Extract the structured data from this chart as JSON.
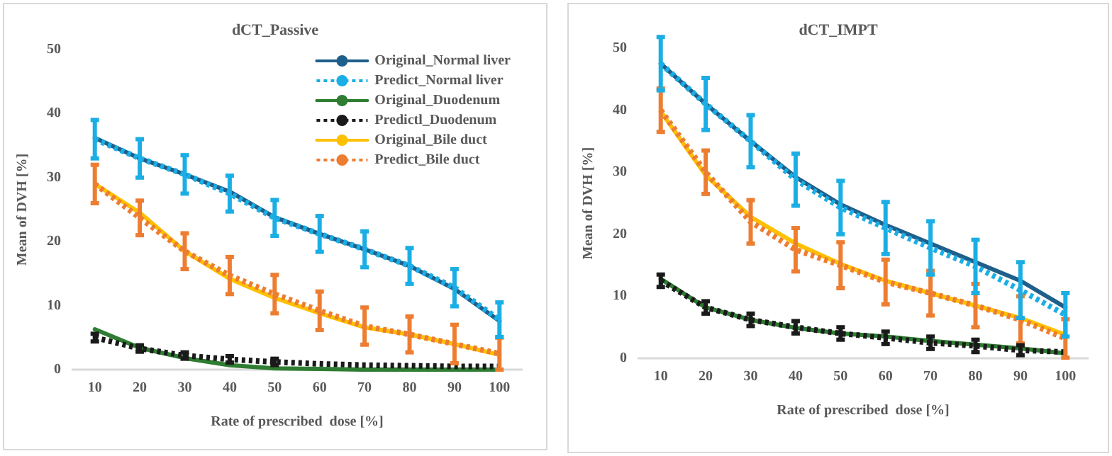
{
  "chart_data": [
    {
      "type": "line",
      "title": "dCT_Passive",
      "xlabel": "Rate of prescribed  dose [%]",
      "ylabel": "Mean of DVH [%]",
      "categories": [
        "10",
        "20",
        "30",
        "40",
        "50",
        "60",
        "70",
        "80",
        "90",
        "100"
      ],
      "ylim": [
        0,
        50
      ],
      "yticks": [
        0,
        10,
        20,
        30,
        40,
        50
      ],
      "grid": false,
      "legend": "top right",
      "marker": "none",
      "series": [
        {
          "name": "Original_Normal liver",
          "color": "#1f5f8b",
          "line_style": "solid",
          "values": [
            36.2,
            33,
            30.5,
            27.8,
            23.8,
            21.2,
            18.8,
            16.2,
            12.6,
            7.6
          ]
        },
        {
          "name": "Predict_Normal liver",
          "color": "#1aaee5",
          "line_style": "dotted",
          "values": [
            36,
            33,
            30.5,
            27.5,
            23.7,
            21.2,
            18.8,
            16.2,
            12.8,
            7.8
          ],
          "errors": [
            3,
            3,
            3,
            2.8,
            2.8,
            2.8,
            2.8,
            2.8,
            2.9,
            2.7
          ]
        },
        {
          "name": "Original_Duodenum",
          "color": "#2e7d32",
          "line_style": "solid",
          "values": [
            6.3,
            3.4,
            1.8,
            0.7,
            0.2,
            0.1,
            0,
            0,
            0,
            0
          ]
        },
        {
          "name": "Predictl_Duodenum",
          "color": "#1a1a1a",
          "line_style": "dotted",
          "values": [
            5,
            3.3,
            2.2,
            1.6,
            1.2,
            0.9,
            0.7,
            0.6,
            0.5,
            0.5
          ],
          "errors": [
            0.6,
            0.5,
            0.5,
            0.5,
            0.5,
            null,
            null,
            null,
            null,
            null
          ]
        },
        {
          "name": "Original_Bile duct",
          "color": "#ffc000",
          "line_style": "solid",
          "values": [
            29,
            24.5,
            18.5,
            14.2,
            11.2,
            8.8,
            6.6,
            5.5,
            4,
            2.3
          ]
        },
        {
          "name": "Predict_Bile duct",
          "color": "#ed7d31",
          "line_style": "dotted",
          "values": [
            29,
            23.7,
            18.5,
            14.7,
            11.8,
            9.2,
            6.8,
            5.5,
            4,
            2.5
          ],
          "errors": [
            3,
            2.7,
            2.8,
            2.9,
            3,
            3,
            2.9,
            2.8,
            3,
            2.5
          ]
        }
      ]
    },
    {
      "type": "line",
      "title": "dCT_IMPT",
      "xlabel": "Rate of prescribed  dose [%]",
      "ylabel": "Mean of DVH [%]",
      "categories": [
        "10",
        "20",
        "30",
        "40",
        "50",
        "60",
        "70",
        "80",
        "90",
        "100"
      ],
      "ylim": [
        0,
        50
      ],
      "yticks": [
        0,
        10,
        20,
        30,
        40,
        50
      ],
      "grid": false,
      "legend": false,
      "marker": "none",
      "series": [
        {
          "color": "#1f5f8b",
          "line_style": "solid",
          "values": [
            47.5,
            41,
            35,
            29.2,
            24.8,
            21.5,
            18.5,
            15.5,
            12.5,
            8.2
          ]
        },
        {
          "color": "#1aaee5",
          "line_style": "dotted",
          "values": [
            47.5,
            41,
            35,
            28.8,
            24.3,
            21,
            17.8,
            14.8,
            11,
            7
          ],
          "errors": [
            4.3,
            4.2,
            4.2,
            4.2,
            4.3,
            4.2,
            4.3,
            4.3,
            4.5,
            3.5
          ]
        },
        {
          "color": "#2e7d32",
          "line_style": "solid",
          "values": [
            12.8,
            8.2,
            6.2,
            4.9,
            4,
            3.5,
            2.8,
            2.2,
            1.6,
            0.8
          ]
        },
        {
          "color": "#1a1a1a",
          "line_style": "dotted",
          "values": [
            12.5,
            8.2,
            6.2,
            5,
            4,
            3.3,
            2.5,
            2,
            1.3,
            1
          ],
          "errors": [
            1,
            1,
            1,
            1,
            1,
            1,
            1,
            1,
            0.8,
            null
          ]
        },
        {
          "color": "#ffc000",
          "line_style": "solid",
          "values": [
            39.8,
            29.5,
            22.8,
            18.5,
            15.2,
            12.5,
            10.5,
            8.5,
            6.5,
            3.8
          ]
        },
        {
          "color": "#ed7d31",
          "line_style": "dotted",
          "values": [
            40,
            30,
            22,
            17.5,
            15,
            12.3,
            10.5,
            8.5,
            6.2,
            3.2
          ],
          "errors": [
            3.5,
            3.5,
            3.5,
            3.5,
            3.7,
            3.6,
            3.6,
            3.5,
            3.8,
            3.1
          ]
        }
      ]
    }
  ]
}
